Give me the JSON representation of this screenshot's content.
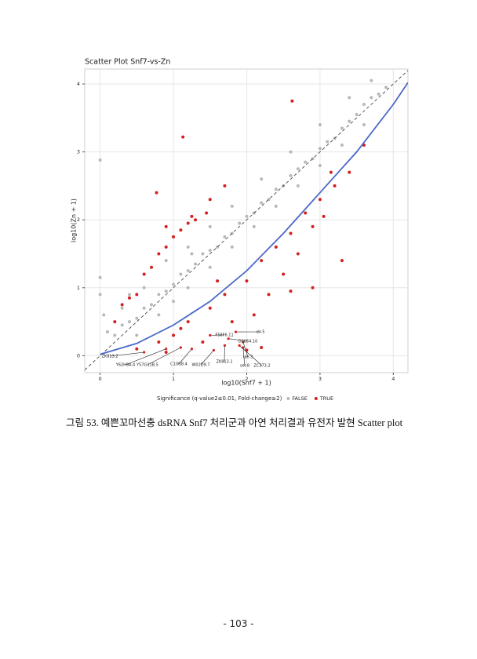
{
  "chart_data": {
    "type": "scatter",
    "title": "Scatter Plot Snf7-vs-Zn",
    "x_label": "log10(Snf7 + 1)",
    "y_label": "log10(Zn + 1)",
    "legend_title": "Significance (q-value2≤0.01, Fold-change≥2)",
    "xlim": [
      -0.21,
      4.2
    ],
    "ylim": [
      -0.25,
      4.22
    ],
    "xticks": [
      0,
      1,
      2,
      3,
      4
    ],
    "yticks": [
      0,
      1,
      2,
      3,
      4
    ],
    "grid": true,
    "series": [
      {
        "name": "FALSE",
        "color": "#b8b8b8",
        "x": [
          0,
          0,
          0,
          0.05,
          0.1,
          0.2,
          0.3,
          0.4,
          0.5,
          0.6,
          0.7,
          0.8,
          0.9,
          1.0,
          1.1,
          1.2,
          1.3,
          1.4,
          1.5,
          1.6,
          1.7,
          1.8,
          1.9,
          2.0,
          2.1,
          2.2,
          2.3,
          2.4,
          2.5,
          2.6,
          2.7,
          2.8,
          2.9,
          3.0,
          3.1,
          3.2,
          3.3,
          3.4,
          3.5,
          3.6,
          3.7,
          3.8,
          3.9,
          0.5,
          0.8,
          1.0,
          1.2,
          1.5,
          1.8,
          2.1,
          2.4,
          2.7,
          3.0,
          3.3,
          3.6,
          0.3,
          0.6,
          0.9,
          1.2,
          1.5,
          1.8,
          2.2,
          2.6,
          3.0,
          3.4,
          3.7,
          1.25,
          0.4
        ],
        "y": [
          2.88,
          1.15,
          0.9,
          0.6,
          0.35,
          0.3,
          0.45,
          0.5,
          0.55,
          0.7,
          0.75,
          0.9,
          0.95,
          1.05,
          1.2,
          1.25,
          1.35,
          1.5,
          1.55,
          1.6,
          1.75,
          1.8,
          1.95,
          2.05,
          2.1,
          2.25,
          2.3,
          2.45,
          2.5,
          2.65,
          2.75,
          2.85,
          2.9,
          3.05,
          3.15,
          3.2,
          3.35,
          3.45,
          3.55,
          3.7,
          3.8,
          3.85,
          3.95,
          0.3,
          0.6,
          0.8,
          1.0,
          1.3,
          1.6,
          1.9,
          2.2,
          2.5,
          2.8,
          3.1,
          3.4,
          0.7,
          1.0,
          1.4,
          1.6,
          1.9,
          2.2,
          2.6,
          3.0,
          3.4,
          3.8,
          4.05,
          1.5,
          0.9
        ]
      },
      {
        "name": "TRUE",
        "color": "#d42020",
        "x": [
          0.77,
          1.13,
          2.62,
          0.6,
          0.8,
          0.5,
          0.9,
          1.0,
          1.1,
          0.7,
          1.2,
          0.4,
          0.3,
          0.2,
          1.3,
          0.9,
          1.25,
          1.5,
          1.45,
          1.7,
          0.5,
          0.8,
          1.0,
          1.2,
          1.5,
          1.7,
          2.0,
          2.2,
          2.4,
          2.6,
          2.8,
          3.0,
          3.2,
          3.4,
          2.9,
          2.6,
          3.3,
          1.8,
          2.1,
          2.3,
          1.4,
          0.9,
          1.1,
          2.5,
          3.05,
          3.6,
          2.0,
          2.2,
          2.7,
          1.6,
          2.9,
          3.15
        ],
        "y": [
          2.4,
          3.22,
          3.75,
          1.2,
          1.5,
          0.9,
          1.6,
          1.75,
          1.85,
          1.3,
          1.95,
          0.85,
          0.75,
          0.5,
          2.0,
          1.9,
          2.05,
          2.3,
          2.1,
          2.5,
          0.1,
          0.2,
          0.3,
          0.5,
          0.7,
          0.9,
          1.1,
          1.4,
          1.6,
          1.8,
          2.1,
          2.3,
          2.5,
          2.7,
          1.0,
          0.95,
          1.4,
          0.5,
          0.6,
          0.9,
          0.2,
          0.05,
          0.4,
          1.2,
          2.05,
          3.1,
          0.08,
          0.12,
          1.5,
          1.1,
          1.9,
          2.7
        ]
      }
    ],
    "fit_line": {
      "color": "#4a68c8",
      "x": [
        0,
        0.5,
        1,
        1.5,
        2,
        2.5,
        3,
        3.5,
        4,
        4.2
      ],
      "y": [
        0.02,
        0.18,
        0.45,
        0.8,
        1.25,
        1.8,
        2.4,
        3.0,
        3.7,
        4.02
      ]
    },
    "annotations": [
      {
        "text": "ZK813.2",
        "x": 0.6,
        "y": 0.05
      },
      {
        "text": "Y62H9A.4",
        "x": 0.9,
        "y": 0.1
      },
      {
        "text": "Y57G11B.5",
        "x": 1.1,
        "y": 0.12
      },
      {
        "text": "C10G8.4",
        "x": 1.25,
        "y": 0.1
      },
      {
        "text": "W02D9.7",
        "x": 1.55,
        "y": 0.08
      },
      {
        "text": "ZK813.1",
        "x": 1.7,
        "y": 0.15
      },
      {
        "text": "sel-8",
        "x": 1.95,
        "y": 0.12
      },
      {
        "text": "ZC373.2",
        "x": 1.9,
        "y": 0.15
      },
      {
        "text": "ule-3",
        "x": 1.95,
        "y": 0.2
      },
      {
        "text": "D2054.10",
        "x": 1.75,
        "y": 0.25
      },
      {
        "text": "clr-5",
        "x": 1.85,
        "y": 0.35
      },
      {
        "text": "F58F6.11",
        "x": 1.5,
        "y": 0.3
      }
    ]
  },
  "caption": "그림 53. 예쁜꼬마선충 dsRNA Snf7 처리군과 아연 처리결과 유전자 발현 Scatter plot",
  "page_number": "- 103 -"
}
